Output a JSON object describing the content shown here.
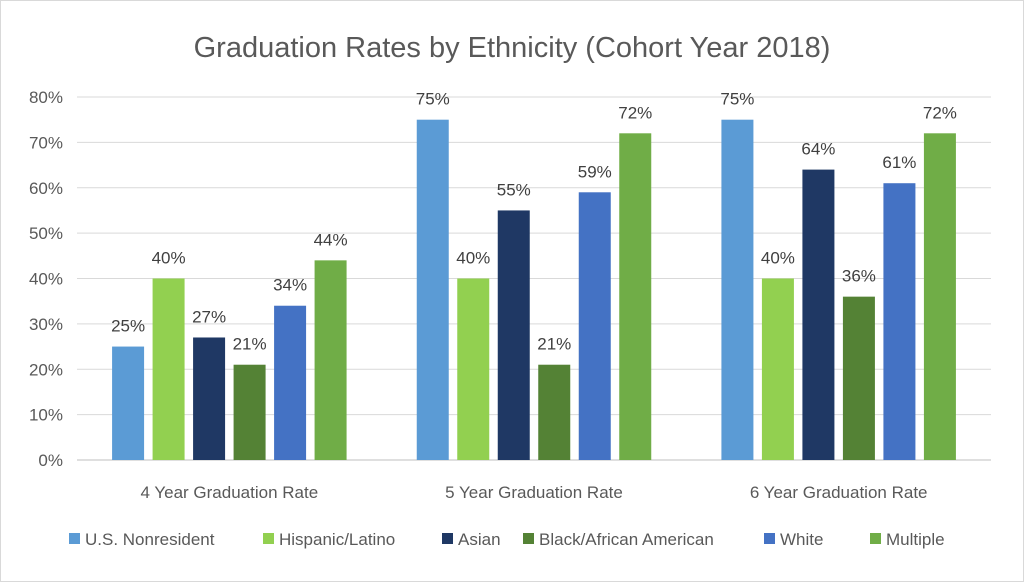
{
  "chart_data": {
    "type": "bar",
    "title": "Graduation Rates by Ethnicity (Cohort Year 2018)",
    "xlabel": "",
    "ylabel": "",
    "ylim": [
      0,
      80
    ],
    "y_ticks": [
      "0%",
      "10%",
      "20%",
      "30%",
      "40%",
      "50%",
      "60%",
      "70%",
      "80%"
    ],
    "y_tick_values": [
      0,
      10,
      20,
      30,
      40,
      50,
      60,
      70,
      80
    ],
    "grid": true,
    "legend_position": "bottom",
    "categories": [
      "4 Year Graduation Rate",
      "5 Year Graduation Rate",
      "6 Year Graduation Rate"
    ],
    "series": [
      {
        "name": "U.S. Nonresident",
        "color": "#5b9bd5",
        "values": [
          25,
          75,
          75
        ],
        "labels": [
          "25%",
          "75%",
          "75%"
        ]
      },
      {
        "name": "Hispanic/Latino",
        "color": "#92d050",
        "values": [
          40,
          40,
          40
        ],
        "labels": [
          "40%",
          "40%",
          "40%"
        ]
      },
      {
        "name": "Asian",
        "color": "#1f3864",
        "values": [
          27,
          55,
          64
        ],
        "labels": [
          "27%",
          "55%",
          "64%"
        ]
      },
      {
        "name": "Black/African American",
        "color": "#548235",
        "values": [
          21,
          21,
          36
        ],
        "labels": [
          "21%",
          "21%",
          "36%"
        ]
      },
      {
        "name": "White",
        "color": "#4472c4",
        "values": [
          34,
          59,
          61
        ],
        "labels": [
          "34%",
          "59%",
          "61%"
        ]
      },
      {
        "name": "Multiple",
        "color": "#70ad47",
        "values": [
          44,
          72,
          72
        ],
        "labels": [
          "44%",
          "72%",
          "72%"
        ]
      }
    ]
  }
}
